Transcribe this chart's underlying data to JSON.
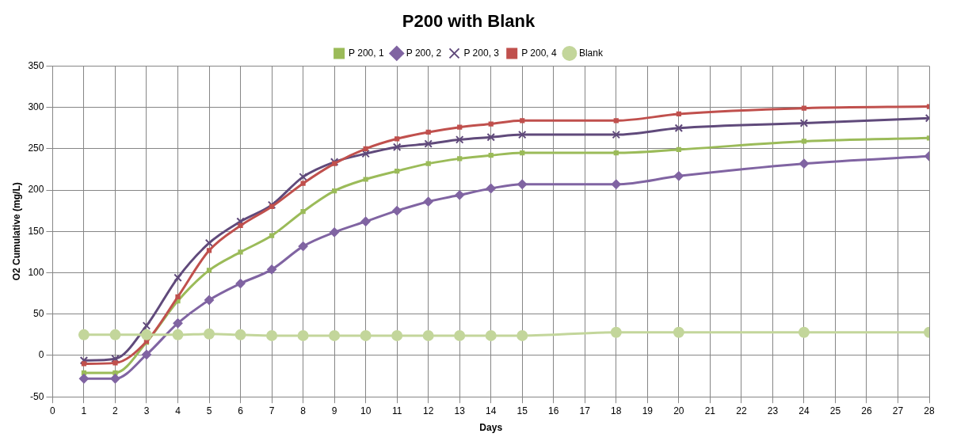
{
  "chart_data": {
    "type": "line",
    "title": "P200 with Blank",
    "xlabel": "Days",
    "ylabel": "O2 Cumulative (mg/L)",
    "x": [
      1,
      2,
      3,
      4,
      5,
      6,
      7,
      8,
      9,
      10,
      11,
      12,
      13,
      14,
      15,
      18,
      20,
      24,
      28
    ],
    "xlim": [
      0,
      28
    ],
    "xticks": [
      0,
      1,
      2,
      3,
      4,
      5,
      6,
      7,
      8,
      9,
      10,
      11,
      12,
      13,
      14,
      15,
      16,
      17,
      18,
      19,
      20,
      21,
      22,
      23,
      24,
      25,
      26,
      27,
      28
    ],
    "ylim": [
      -50,
      350
    ],
    "yticks": [
      -50,
      0,
      50,
      100,
      150,
      200,
      250,
      300,
      350
    ],
    "grid": true,
    "legend": "top",
    "series": [
      {
        "name": "P 200, 1",
        "color": "#9bbb59",
        "marker": "square",
        "values": [
          -21,
          -21,
          16,
          66,
          103,
          125,
          145,
          174,
          199,
          213,
          223,
          232,
          238,
          242,
          245,
          245,
          249,
          259,
          263
        ]
      },
      {
        "name": "P 200, 2",
        "color": "#8064a2",
        "marker": "diamond",
        "values": [
          -28,
          -28,
          1,
          39,
          67,
          87,
          104,
          132,
          149,
          162,
          175,
          186,
          194,
          202,
          207,
          207,
          217,
          232,
          241
        ]
      },
      {
        "name": "P 200, 3",
        "color": "#604a7b",
        "marker": "cross",
        "values": [
          -6,
          -4,
          36,
          94,
          136,
          162,
          182,
          216,
          234,
          244,
          252,
          256,
          261,
          264,
          267,
          267,
          275,
          281,
          287
        ]
      },
      {
        "name": "P 200, 4",
        "color": "#c0504d",
        "marker": "square",
        "values": [
          -10,
          -9,
          17,
          71,
          127,
          157,
          180,
          208,
          232,
          250,
          262,
          270,
          276,
          280,
          284,
          284,
          292,
          299,
          301
        ]
      },
      {
        "name": "Blank",
        "color": "#c3d69b",
        "marker": "circle",
        "values": [
          25,
          25,
          25,
          25,
          26,
          25,
          24,
          24,
          24,
          24,
          24,
          24,
          24,
          24,
          24,
          28,
          28,
          28,
          28
        ]
      }
    ]
  }
}
